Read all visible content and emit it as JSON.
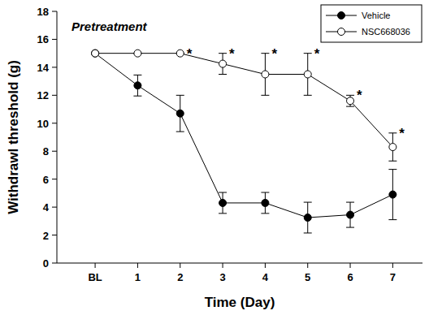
{
  "chart_data": {
    "type": "line",
    "title": "Pretreatment",
    "x_label": "Time (Day)",
    "y_label": "Withdrawl threshold (g)",
    "categories": [
      "BL",
      "1",
      "2",
      "3",
      "4",
      "5",
      "6",
      "7"
    ],
    "ylim": [
      0,
      18
    ],
    "yticks": [
      0,
      2,
      4,
      6,
      8,
      10,
      12,
      14,
      16,
      18
    ],
    "grid": false,
    "legend": "top-right",
    "series": [
      {
        "name": "Vehicle",
        "color": "#000000",
        "marker": "filled-circle",
        "line_style": "solid",
        "values": [
          15,
          12.7,
          10.7,
          4.3,
          4.3,
          3.25,
          3.45,
          4.9
        ],
        "errors": [
          0,
          0.75,
          1.3,
          0.75,
          0.75,
          1.1,
          0.9,
          1.8
        ]
      },
      {
        "name": "NSC668036",
        "color": "#000000",
        "marker": "open-circle",
        "line_style": "solid",
        "values": [
          15,
          15,
          15,
          14.25,
          13.5,
          13.5,
          11.6,
          8.3
        ],
        "errors": [
          0,
          0,
          0,
          0.75,
          1.5,
          1.5,
          0.4,
          1.0
        ],
        "annotations": [
          null,
          null,
          "*",
          "*",
          "*",
          "*",
          "*",
          "*"
        ]
      }
    ]
  }
}
